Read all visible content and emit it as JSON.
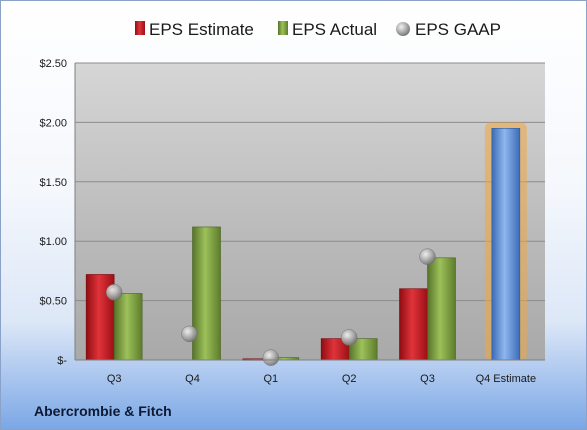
{
  "company": "Abercrombie & Fitch",
  "colors": {
    "estimate": "#c0161c",
    "actual": "#7a9c3a",
    "gaap": "#9a9a9a",
    "forecast": "#5b8ed6",
    "forecast_glow": "#f3a53c"
  },
  "chart_data": {
    "type": "bar",
    "categories": [
      "Q3",
      "Q4",
      "Q1",
      "Q2",
      "Q3",
      "Q4 Estimate"
    ],
    "series": [
      {
        "name": "EPS Estimate",
        "values": [
          0.72,
          null,
          0.01,
          0.18,
          0.6,
          1.95
        ]
      },
      {
        "name": "EPS Actual",
        "values": [
          0.56,
          1.12,
          0.02,
          0.18,
          0.86,
          null
        ]
      },
      {
        "name": "EPS GAAP",
        "values": [
          0.57,
          0.22,
          0.02,
          0.19,
          0.87,
          null
        ]
      }
    ],
    "ylim": [
      0,
      2.5
    ],
    "yticks": [
      0,
      0.5,
      1.0,
      1.5,
      2.0,
      2.5
    ],
    "ytick_labels": [
      "$-",
      "$0.50",
      "$1.00",
      "$1.50",
      "$2.00",
      "$2.50"
    ],
    "grid": true,
    "legend_position": "top"
  }
}
